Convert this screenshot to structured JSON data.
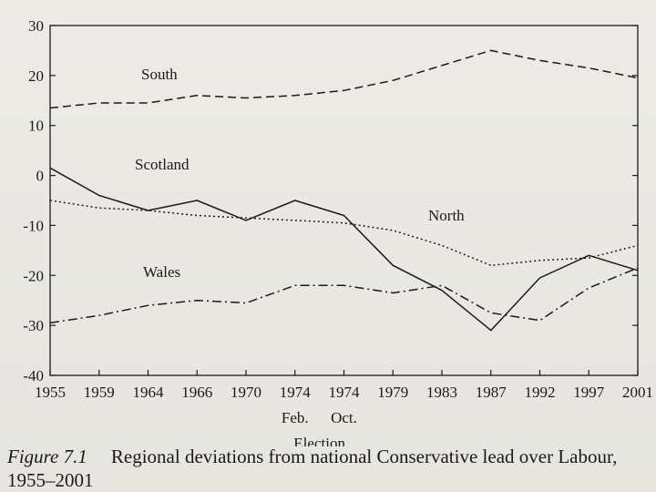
{
  "chart_data": {
    "type": "line",
    "x": [
      "1955",
      "1959",
      "1964",
      "1966",
      "1970",
      "1974",
      "1974",
      "1979",
      "1983",
      "1987",
      "1992",
      "1997",
      "2001"
    ],
    "x_sublabels": [
      "",
      "",
      "",
      "",
      "",
      "Feb.",
      "Oct.",
      "",
      "",
      "",
      "",
      "",
      ""
    ],
    "xlabel": "Election",
    "ylabel": "",
    "ylim": [
      -40,
      30
    ],
    "yticks": [
      -40,
      -30,
      -20,
      -10,
      0,
      10,
      20,
      30
    ],
    "grid": false,
    "series": [
      {
        "name": "South",
        "style": "dashed",
        "values": [
          13.5,
          14.5,
          14.5,
          16,
          15.5,
          16,
          17,
          19,
          22,
          25,
          23,
          21.5,
          19.5
        ]
      },
      {
        "name": "Scotland",
        "style": "solid",
        "values": [
          1.5,
          -4,
          -7,
          -5,
          -9,
          -5,
          -8,
          -18,
          -23,
          -31,
          -20.5,
          -16,
          -19
        ]
      },
      {
        "name": "North",
        "style": "dotted",
        "values": [
          -5,
          -6.5,
          -7,
          -8,
          -8.5,
          -9,
          -9.5,
          -11,
          -14,
          -18,
          -17,
          -16.5,
          -14
        ]
      },
      {
        "name": "Wales",
        "style": "dash-dot",
        "values": [
          -29.5,
          -28,
          -26,
          -25,
          -25.5,
          -22,
          -22,
          -23.5,
          -22,
          -27.5,
          -29,
          -22.5,
          -18.5
        ]
      }
    ]
  },
  "caption": {
    "figure": "Figure 7.1",
    "text": "Regional deviations from national Conservative lead over Labour, 1955–2001"
  }
}
